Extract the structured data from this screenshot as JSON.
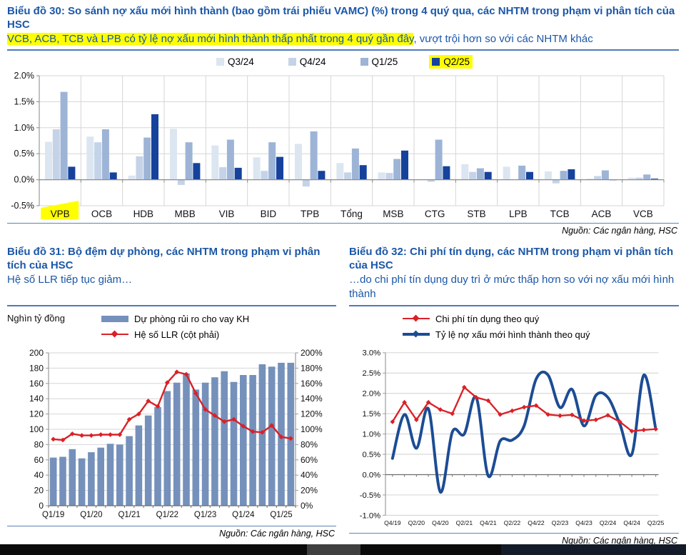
{
  "chart_data": [
    {
      "id": "chart30",
      "type": "bar",
      "title": "Biểu đồ 30: So sánh nợ xấu mới hình thành (bao gồm trái phiếu VAMC) (%) trong 4 quý qua, các NHTM trong phạm vi phân tích của HSC",
      "subtitle_highlighted": "VCB, ACB, TCB và LPB có tỷ lệ nợ xấu mới hình thành thấp nhất trong 4 quý gần đây",
      "subtitle_rest": ", vượt trội hơn so với các NHTM khác",
      "categories": [
        "VPB",
        "OCB",
        "HDB",
        "MBB",
        "VIB",
        "BID",
        "TPB",
        "Tổng",
        "MSB",
        "CTG",
        "STB",
        "LPB",
        "TCB",
        "ACB",
        "VCB"
      ],
      "highlighted_category": "VPB",
      "ylim": [
        -0.5,
        2.0
      ],
      "yticks": [
        2.0,
        1.5,
        1.0,
        0.5,
        0.0,
        -0.5
      ],
      "ytick_labels": [
        "2.0%",
        "1.5%",
        "1.0%",
        "0.5%",
        "0.0%",
        "-0.5%"
      ],
      "series": [
        {
          "name": "Q3/24",
          "color": "#dce6f1",
          "values": [
            0.73,
            0.83,
            0.08,
            0.98,
            0.66,
            0.43,
            0.69,
            0.32,
            0.14,
            0.01,
            0.3,
            0.25,
            0.16,
            0.02,
            0.04
          ]
        },
        {
          "name": "Q4/24",
          "color": "#c5d3e8",
          "values": [
            0.97,
            0.72,
            0.45,
            -0.1,
            0.24,
            0.17,
            -0.13,
            0.14,
            0.13,
            -0.04,
            0.15,
            0.0,
            -0.07,
            0.07,
            0.04
          ]
        },
        {
          "name": "Q1/25",
          "color": "#9db4d6",
          "values": [
            1.69,
            0.97,
            0.81,
            0.72,
            0.77,
            0.72,
            0.93,
            0.6,
            0.4,
            0.77,
            0.22,
            0.27,
            0.17,
            0.18,
            0.1
          ]
        },
        {
          "name": "Q2/25",
          "color": "#16429c",
          "highlighted": true,
          "values": [
            0.25,
            0.14,
            1.26,
            0.32,
            0.23,
            0.44,
            0.17,
            0.28,
            0.56,
            0.26,
            0.15,
            0.15,
            0.2,
            -0.01,
            0.02
          ]
        }
      ],
      "highlight_color": "#ffff00",
      "source": "Nguồn: Các ngân hàng, HSC"
    },
    {
      "id": "chart31",
      "type": "bar+line",
      "title": "Biểu đồ 31: Bộ đệm dự phòng, các NHTM trong phạm vi phân tích của HSC",
      "subtitle": "Hệ số LLR tiếp tục giảm…",
      "axis_unit": "Nghìn tỷ đồng",
      "x": [
        "Q1/19",
        "Q2/19",
        "Q3/19",
        "Q4/19",
        "Q1/20",
        "Q2/20",
        "Q3/20",
        "Q4/20",
        "Q1/21",
        "Q2/21",
        "Q3/21",
        "Q4/21",
        "Q1/22",
        "Q2/22",
        "Q3/22",
        "Q4/22",
        "Q1/23",
        "Q2/23",
        "Q3/23",
        "Q4/23",
        "Q1/24",
        "Q2/24",
        "Q3/24",
        "Q4/24",
        "Q1/25",
        "Q2/25"
      ],
      "x_tick_labels": [
        "Q1/19",
        "Q1/20",
        "Q1/21",
        "Q1/22",
        "Q1/23",
        "Q1/24",
        "Q1/25"
      ],
      "x_tick_indices": [
        0,
        4,
        8,
        12,
        16,
        20,
        24
      ],
      "bar_series": {
        "name": "Dự phòng rủi ro cho vay KH",
        "color": "#7591bb",
        "axis": "left",
        "values": [
          63,
          64,
          74,
          62,
          70,
          76,
          81,
          80,
          91,
          105,
          118,
          129,
          150,
          161,
          173,
          152,
          161,
          168,
          176,
          162,
          171,
          171,
          185,
          182,
          187,
          187
        ]
      },
      "line_series": {
        "name": "Hệ số LLR (cột phải)",
        "color": "#d92127",
        "axis": "right",
        "values": [
          87,
          86,
          94,
          92,
          92,
          93,
          93,
          93,
          113,
          120,
          137,
          130,
          161,
          175,
          172,
          147,
          126,
          118,
          110,
          113,
          104,
          97,
          96,
          105,
          90,
          88
        ]
      },
      "left_ylim": [
        0,
        200
      ],
      "left_yticks": [
        0,
        20,
        40,
        60,
        80,
        100,
        120,
        140,
        160,
        180,
        200
      ],
      "right_ylim_pct": [
        0,
        200
      ],
      "right_ytick_labels": [
        "0%",
        "20%",
        "40%",
        "60%",
        "80%",
        "100%",
        "120%",
        "140%",
        "160%",
        "180%",
        "200%"
      ],
      "source": "Nguồn: Các ngân hàng, HSC"
    },
    {
      "id": "chart32",
      "type": "line",
      "title": "Biểu đồ 32: Chi phí tín dụng, các NHTM trong phạm vi phân tích của HSC",
      "subtitle": "…do chi phí tín dụng duy trì ở mức thấp hơn so với nợ xấu mới hình thành",
      "x": [
        "Q4/19",
        "Q1/20",
        "Q2/20",
        "Q3/20",
        "Q4/20",
        "Q1/21",
        "Q2/21",
        "Q3/21",
        "Q4/21",
        "Q1/22",
        "Q2/22",
        "Q3/22",
        "Q4/22",
        "Q1/23",
        "Q2/23",
        "Q3/23",
        "Q4/23",
        "Q1/24",
        "Q2/24",
        "Q3/24",
        "Q4/24",
        "Q1/25",
        "Q2/25"
      ],
      "x_tick_labels": [
        "Q4/19",
        "Q2/20",
        "Q4/20",
        "Q2/21",
        "Q4/21",
        "Q2/22",
        "Q4/22",
        "Q2/23",
        "Q4/23",
        "Q2/24",
        "Q4/24",
        "Q2/25"
      ],
      "x_tick_indices": [
        0,
        2,
        4,
        6,
        8,
        10,
        12,
        14,
        16,
        18,
        20,
        22
      ],
      "ylim": [
        -1.0,
        3.0
      ],
      "yticks": [
        3.0,
        2.5,
        2.0,
        1.5,
        1.0,
        0.5,
        0.0,
        -0.5,
        -1.0
      ],
      "ytick_labels": [
        "3.0%",
        "2.5%",
        "2.0%",
        "1.5%",
        "1.0%",
        "0.5%",
        "0.0%",
        "-0.5%",
        "-1.0%"
      ],
      "series": [
        {
          "name": "Chi phí tín dụng theo quý",
          "color": "#d92127",
          "marker": "diamond",
          "smooth": false,
          "values": [
            1.3,
            1.78,
            1.35,
            1.78,
            1.6,
            1.5,
            2.15,
            1.9,
            1.82,
            1.48,
            1.57,
            1.66,
            1.7,
            1.48,
            1.45,
            1.47,
            1.33,
            1.35,
            1.46,
            1.3,
            1.07,
            1.1,
            1.12
          ]
        },
        {
          "name": "Tỷ lệ nợ xấu mới hình thành theo quý",
          "color": "#1c4c94",
          "marker": "none",
          "smooth": true,
          "values": [
            0.4,
            1.48,
            0.65,
            1.62,
            -0.43,
            1.05,
            1.0,
            1.9,
            -0.03,
            0.83,
            0.85,
            1.2,
            2.35,
            2.45,
            1.65,
            2.1,
            1.2,
            1.95,
            1.9,
            1.25,
            0.5,
            2.45,
            1.12
          ]
        }
      ],
      "source": "Nguồn: Các ngân hàng, HSC"
    }
  ]
}
